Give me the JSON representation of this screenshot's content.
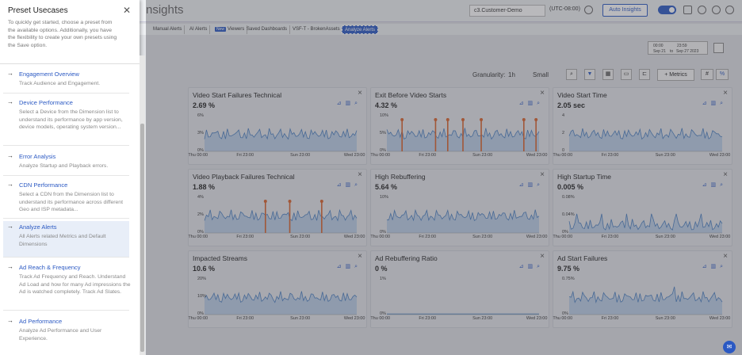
{
  "app": {
    "title": "nsights",
    "customer": "c3.Customer-Demo",
    "timezone": "(UTC-08:00)",
    "auto_insights": "Auto Insights",
    "tabs": [
      "Manual Alerts",
      "AI Alerts",
      "Viewers",
      "Saved Dashboards",
      "VSF-T - BrokenAssets",
      "Analyze Alerts"
    ],
    "new_badge": "New",
    "date_from_time": "00:00",
    "date_to_time": "23:59",
    "date_from": "Sep 21",
    "date_to": "Sep 27 2023",
    "date_sep": "to",
    "granularity_label": "Granularity:",
    "granularity_value": "1h",
    "size_value": "Small",
    "metrics_label": "+ Metrics",
    "hash_label": "#",
    "pct_label": "%"
  },
  "panel": {
    "title": "Preset Usecases",
    "intro": "To quickly get started, choose a preset from the available options. Additionally, you have the flexibility to create your own presets using the Save option.",
    "items": [
      {
        "name": "Engagement Overview",
        "desc": "Track Audience and Engagement."
      },
      {
        "name": "Device Performance",
        "desc": "Select a Device from the Dimension list to understand its performance by app version, device models, operating system version..."
      },
      {
        "name": "Error Analysis",
        "desc": "Analyze Startup and Playback errors."
      },
      {
        "name": "CDN Performance",
        "desc": "Select a CDN from the Dimension list to understand its performance across different Geo and ISP metadata..."
      },
      {
        "name": "Analyze Alerts",
        "desc": "All Alerts related Metrics and Default Dimensions"
      },
      {
        "name": "Ad Reach & Frequency",
        "desc": "Track Ad Frequency and Reach. Understand Ad Load and how for many Ad impressions the Ad is watched completely. Track Ad Slates."
      },
      {
        "name": "Ad Performance",
        "desc": "Analyze Ad Performance and User Experience."
      }
    ]
  },
  "cards": [
    {
      "title": "Video Start Failures Technical",
      "value": "2.69 %",
      "yticks": [
        "6%",
        "3%",
        "0%"
      ]
    },
    {
      "title": "Exit Before Video Starts",
      "value": "4.32 %",
      "yticks": [
        "10%",
        "5%",
        "0%"
      ]
    },
    {
      "title": "Video Start Time",
      "value": "2.05 sec",
      "yticks": [
        "4",
        "2",
        "0"
      ]
    },
    {
      "title": "Video Playback Failures Technical",
      "value": "1.88 %",
      "yticks": [
        "4%",
        "2%",
        "0%"
      ]
    },
    {
      "title": "High Rebuffering",
      "value": "5.64 %",
      "yticks": [
        "10%",
        "0%"
      ]
    },
    {
      "title": "High Startup Time",
      "value": "0.005 %",
      "yticks": [
        "0.08%",
        "0.04%",
        "0%"
      ]
    },
    {
      "title": "Impacted Streams",
      "value": "10.6 %",
      "yticks": [
        "20%",
        "10%",
        "0%"
      ]
    },
    {
      "title": "Ad Rebuffering Ratio",
      "value": "0 %",
      "yticks": [
        "1%",
        "0%"
      ]
    },
    {
      "title": "Ad Start Failures",
      "value": "9.75 %",
      "yticks": [
        "0.75%",
        "0%"
      ]
    }
  ],
  "xticks": [
    "Thu 00:00",
    "Fri 23:00",
    "Sun 23:00",
    "Wed 23:00"
  ],
  "colors": {
    "accent": "#2b59c3",
    "series": "#4a7fc1",
    "fill": "#a9c4e6",
    "alert": "#d9622b"
  }
}
